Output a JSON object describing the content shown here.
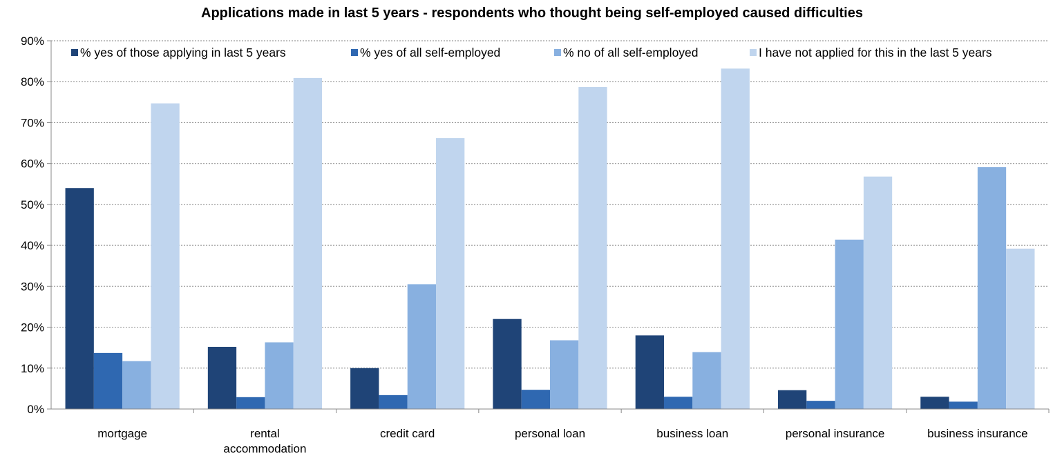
{
  "chart_data": {
    "type": "bar",
    "title": "Applications made in last 5 years - respondents who thought being self-employed caused difficulties",
    "xlabel": "",
    "ylabel": "",
    "ylim": [
      0,
      90
    ],
    "yticks": [
      "0%",
      "10%",
      "20%",
      "30%",
      "40%",
      "50%",
      "60%",
      "70%",
      "80%",
      "90%"
    ],
    "grid": true,
    "legend_position": "top",
    "categories": [
      [
        "mortgage"
      ],
      [
        "rental",
        "accommodation"
      ],
      [
        "credit card"
      ],
      [
        "personal loan"
      ],
      [
        "business loan"
      ],
      [
        "personal insurance"
      ],
      [
        "business insurance"
      ]
    ],
    "series": [
      {
        "name": "% yes of those applying in last 5 years",
        "color": "#1F4477",
        "values": [
          54,
          15.2,
          10,
          22,
          18,
          4.6,
          3
        ]
      },
      {
        "name": "% yes of all self-employed",
        "color": "#2F68B1",
        "values": [
          13.7,
          2.9,
          3.4,
          4.7,
          3,
          2,
          1.8
        ]
      },
      {
        "name": "% no of all self-employed",
        "color": "#88B0E0",
        "values": [
          11.7,
          16.3,
          30.5,
          16.8,
          13.9,
          41.4,
          59.1
        ]
      },
      {
        "name": "I have not applied for this in the last 5 years",
        "color": "#C0D5EE",
        "values": [
          74.7,
          80.9,
          66.2,
          78.7,
          83.2,
          56.8,
          39.2
        ]
      }
    ]
  }
}
